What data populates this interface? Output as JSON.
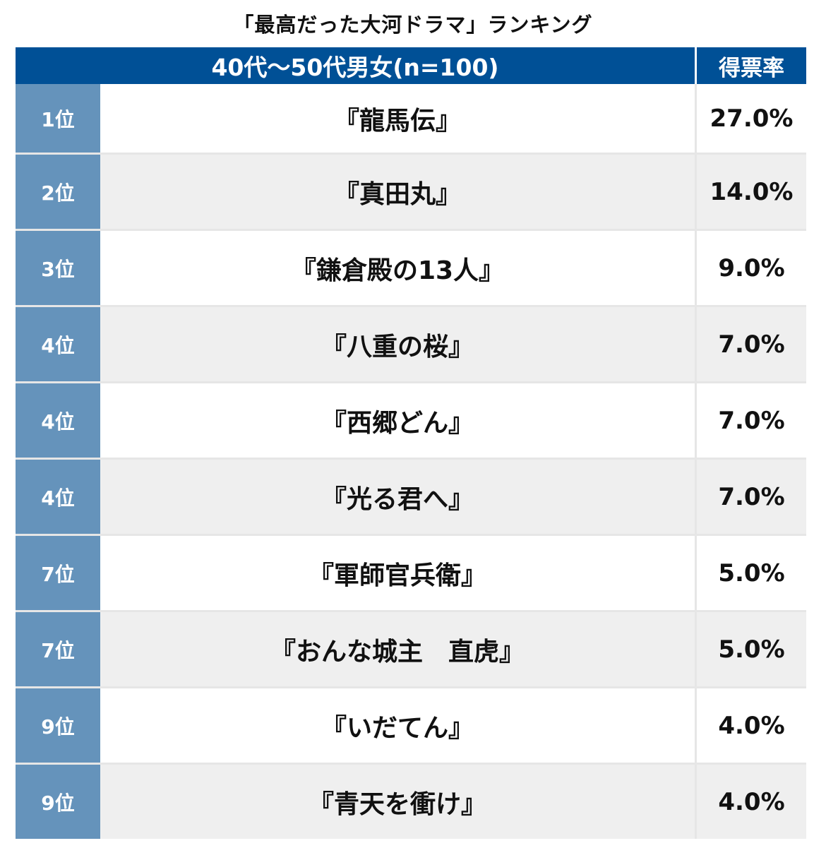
{
  "title": "「最高だった大河ドラマ」ランキング",
  "header": {
    "group": "40代〜50代男女(n=100)",
    "rate": "得票率"
  },
  "rows": [
    {
      "rank": "1位",
      "title": "『龍馬伝』",
      "rate": "27.0%"
    },
    {
      "rank": "2位",
      "title": "『真田丸』",
      "rate": "14.0%"
    },
    {
      "rank": "3位",
      "title": "『鎌倉殿の13人』",
      "rate": "9.0%"
    },
    {
      "rank": "4位",
      "title": "『八重の桜』",
      "rate": "7.0%"
    },
    {
      "rank": "4位",
      "title": "『西郷どん』",
      "rate": "7.0%"
    },
    {
      "rank": "4位",
      "title": "『光る君へ』",
      "rate": "7.0%"
    },
    {
      "rank": "7位",
      "title": "『軍師官兵衛』",
      "rate": "5.0%"
    },
    {
      "rank": "7位",
      "title": "『おんな城主　直虎』",
      "rate": "5.0%"
    },
    {
      "rank": "9位",
      "title": "『いだてん』",
      "rate": "4.0%"
    },
    {
      "rank": "9位",
      "title": "『青天を衝け』",
      "rate": "4.0%"
    }
  ],
  "colors": {
    "header_bg": "#005096",
    "rank_bg": "#6593bb",
    "alt_row_bg": "#efefef"
  }
}
